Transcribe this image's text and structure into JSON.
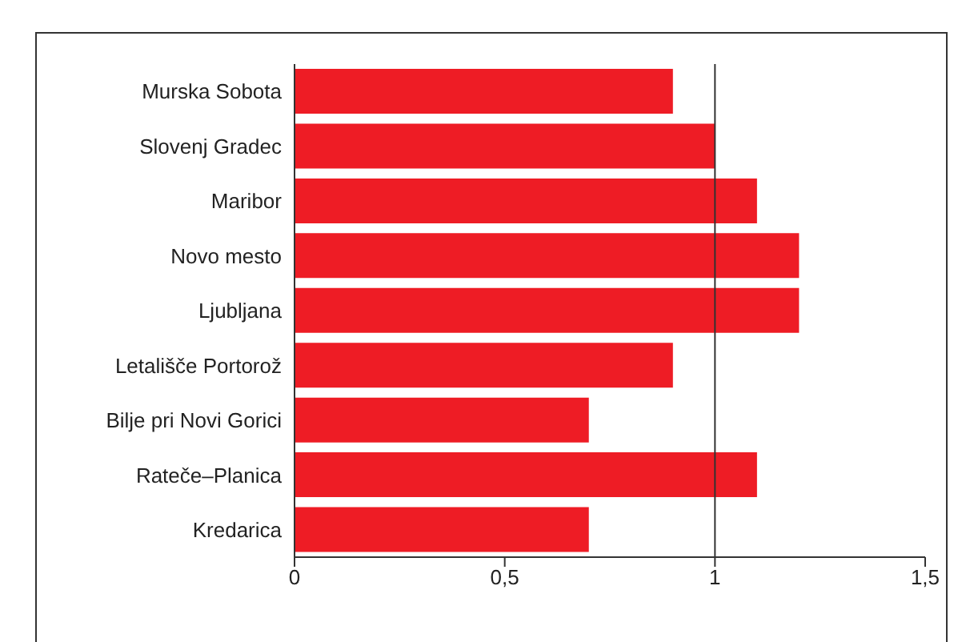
{
  "chart_data": {
    "type": "bar",
    "orientation": "horizontal",
    "categories": [
      "Murska Sobota",
      "Slovenj Gradec",
      "Maribor",
      "Novo mesto",
      "Ljubljana",
      "Letališče Portorož",
      "Bilje pri Novi Gorici",
      "Rateče–Planica",
      "Kredarica"
    ],
    "values": [
      0.9,
      1.0,
      1.1,
      1.2,
      1.2,
      0.9,
      0.7,
      1.1,
      0.7
    ],
    "color": "#ee1c25",
    "xlim": [
      0,
      1.5
    ],
    "xticks": [
      0,
      {
        "value": 0.5,
        "label": "0,5"
      },
      1,
      {
        "value": 1.5,
        "label": "1,5"
      }
    ],
    "ref_lines": [
      {
        "axis": "x",
        "value": 1,
        "color": "#333333"
      }
    ],
    "grid": false,
    "legend": false
  }
}
